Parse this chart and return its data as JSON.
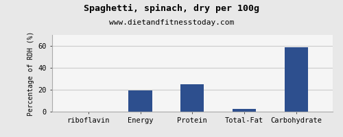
{
  "title": "Spaghetti, spinach, dry per 100g",
  "subtitle": "www.dietandfitnesstoday.com",
  "categories": [
    "riboflavin",
    "Energy",
    "Protein",
    "Total-Fat",
    "Carbohydrate"
  ],
  "values": [
    0.5,
    19.5,
    25.0,
    2.5,
    58.5
  ],
  "bar_color": "#2d4f8e",
  "ylabel": "Percentage of RDH (%)",
  "ylim": [
    0,
    70
  ],
  "yticks": [
    0,
    20,
    40,
    60
  ],
  "background_color": "#e8e8e8",
  "plot_bg_color": "#f5f5f5",
  "title_fontsize": 9.5,
  "subtitle_fontsize": 8,
  "ylabel_fontsize": 7,
  "xlabel_fontsize": 7.5,
  "tick_fontsize": 7.5,
  "border_color": "#aaaaaa",
  "grid_color": "#cccccc"
}
